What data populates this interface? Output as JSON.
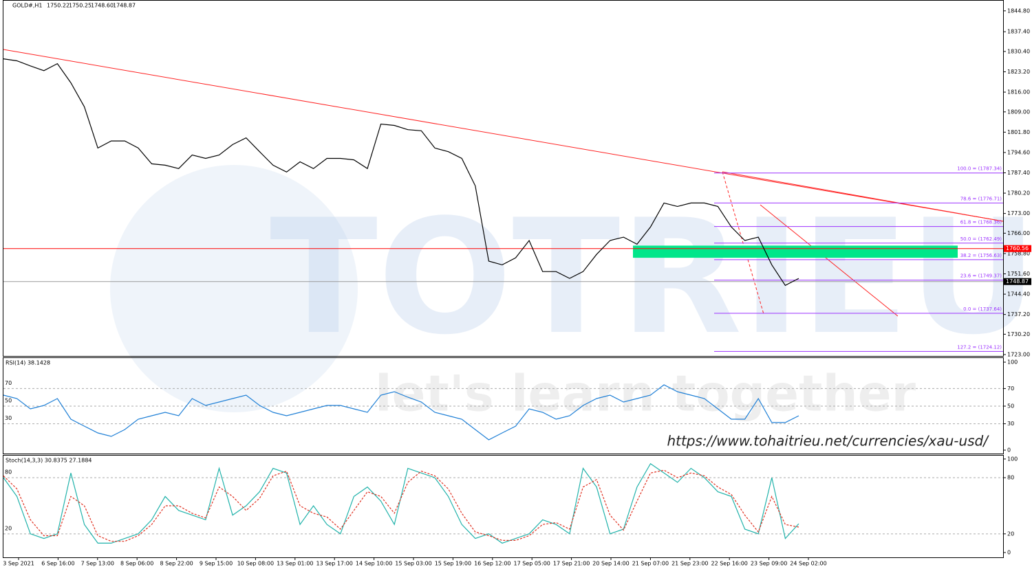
{
  "chart_data": [
    {
      "type": "line",
      "symbol": "GOLD#,H1",
      "quote": [
        "1750.22",
        "1750.25",
        "1748.60",
        "1748.87"
      ],
      "ylim": [
        1722.5,
        1848.4
      ],
      "yticks": [
        {
          "value": 1844.8,
          "label": "1844.80"
        },
        {
          "value": 1837.4,
          "label": "1837.40"
        },
        {
          "value": 1830.4,
          "label": "1830.40"
        },
        {
          "value": 1823.2,
          "label": "1823.20"
        },
        {
          "value": 1816.0,
          "label": "1816.00"
        },
        {
          "value": 1809.0,
          "label": "1809.00"
        },
        {
          "value": 1801.8,
          "label": "1801.80"
        },
        {
          "value": 1794.6,
          "label": "1794.60"
        },
        {
          "value": 1787.4,
          "label": "1787.40"
        },
        {
          "value": 1780.2,
          "label": "1780.20"
        },
        {
          "value": 1773.0,
          "label": "1773.00"
        },
        {
          "value": 1766.0,
          "label": "1766.00"
        },
        {
          "value": 1758.8,
          "label": "1758.80"
        },
        {
          "value": 1751.6,
          "label": "1751.60"
        },
        {
          "value": 1744.4,
          "label": "1744.40"
        },
        {
          "value": 1737.2,
          "label": "1737.20"
        },
        {
          "value": 1730.2,
          "label": "1730.20"
        },
        {
          "value": 1723.0,
          "label": "1723.00"
        }
      ],
      "series": [
        {
          "color": "#000000",
          "values": [
            1827.8,
            1827.1,
            1825.3,
            1823.6,
            1826.1,
            1819.3,
            1810.8,
            1796.2,
            1798.7,
            1798.7,
            1796.2,
            1790.6,
            1790.1,
            1788.9,
            1793.7,
            1792.5,
            1793.7,
            1797.4,
            1799.8,
            1794.9,
            1790.1,
            1787.7,
            1791.3,
            1788.9,
            1792.5,
            1792.5,
            1792.0,
            1788.9,
            1804.7,
            1804.2,
            1802.7,
            1802.3,
            1796.2,
            1794.9,
            1792.5,
            1782.8,
            1756.1,
            1754.8,
            1757.3,
            1763.4,
            1752.4,
            1752.4,
            1750.0,
            1752.4,
            1758.5,
            1763.4,
            1764.6,
            1762.1,
            1768.2,
            1776.7,
            1775.5,
            1776.7,
            1776.7,
            1775.5,
            1768.2,
            1763.4,
            1764.6,
            1754.8,
            1747.5,
            1750.0
          ]
        }
      ],
      "horizontal_line": {
        "value": 1760.56,
        "color": "#ff0000"
      },
      "last_price": 1748.87,
      "zone": {
        "low": 1757.3,
        "high": 1761.6,
        "color": "#00e68a"
      },
      "fib_color": "#9b30ff",
      "fib_levels": [
        {
          "label": "100.0 = (1787.34)",
          "value": 1787.34
        },
        {
          "label": "78.6 = (1776.71)",
          "value": 1776.71
        },
        {
          "label": "61.8 = (1768.36)",
          "value": 1768.36
        },
        {
          "label": "50.0 = (1762.49)",
          "value": 1762.49
        },
        {
          "label": "38.2 = (1756.63)",
          "value": 1756.63
        },
        {
          "label": "23.6 = (1749.37)",
          "value": 1749.37
        },
        {
          "label": "0.0 = (1737.64)",
          "value": 1737.64
        },
        {
          "label": "127.2 = (1724.12)",
          "value": 1724.12
        }
      ],
      "x_labels": [
        "3 Sep 2021",
        "6 Sep 16:00",
        "7 Sep 13:00",
        "8 Sep 06:00",
        "8 Sep 22:00",
        "9 Sep 15:00",
        "10 Sep 08:00",
        "13 Sep 01:00",
        "13 Sep 17:00",
        "14 Sep 10:00",
        "15 Sep 03:00",
        "15 Sep 19:00",
        "16 Sep 12:00",
        "17 Sep 05:00",
        "17 Sep 21:00",
        "20 Sep 14:00",
        "21 Sep 07:00",
        "21 Sep 23:00",
        "22 Sep 16:00",
        "23 Sep 09:00",
        "24 Sep 02:00"
      ],
      "watermark": "TOTRIEU",
      "tagline": "let's learn together",
      "url": "https://www.tohaitrieu.net/currencies/xau-usd/"
    },
    {
      "type": "line",
      "title": "RSI(14) 38.1428",
      "ylim": [
        -3.9,
        104.7
      ],
      "yticks": [
        100,
        70,
        50,
        30,
        0
      ],
      "levels": [
        70,
        50,
        30
      ],
      "series": [
        {
          "color": "#1e7fd6",
          "values": [
            62.5,
            58.6,
            46.9,
            50.8,
            58.6,
            35.2,
            27.3,
            19.5,
            15.6,
            23.4,
            35.2,
            39.1,
            43.0,
            39.1,
            58.6,
            50.8,
            54.7,
            58.6,
            62.5,
            50.8,
            43.0,
            39.1,
            43.0,
            46.9,
            50.8,
            50.8,
            46.9,
            43.0,
            62.5,
            66.4,
            60.2,
            54.7,
            43.0,
            39.1,
            35.2,
            23.4,
            11.7,
            19.5,
            27.3,
            46.9,
            43.0,
            35.2,
            39.1,
            50.8,
            58.6,
            62.5,
            54.7,
            58.6,
            62.5,
            74.2,
            66.4,
            62.5,
            58.6,
            46.9,
            35.2,
            35.2,
            58.6,
            31.3,
            31.3,
            39.1
          ]
        }
      ]
    },
    {
      "type": "line",
      "title": "Stoch(14,3,3) 30.8375 27.1884",
      "ylim": [
        -5.1,
        103.6
      ],
      "yticks": [
        100,
        80,
        20,
        0
      ],
      "levels": [
        80,
        20
      ],
      "series": [
        {
          "color": "#20b2aa",
          "values": [
            80,
            60,
            20,
            15,
            20,
            85,
            30,
            10,
            10,
            15,
            20,
            35,
            60,
            45,
            40,
            35,
            90,
            40,
            50,
            65,
            90,
            85,
            30,
            50,
            30,
            20,
            60,
            70,
            55,
            30,
            90,
            85,
            80,
            60,
            30,
            15,
            20,
            10,
            15,
            20,
            35,
            30,
            20,
            90,
            70,
            20,
            25,
            70,
            95,
            85,
            75,
            90,
            80,
            65,
            60,
            25,
            20,
            80,
            15,
            30.8
          ]
        },
        {
          "color": "#e03020",
          "dash": true,
          "values": [
            82,
            68,
            35,
            18,
            18,
            60,
            50,
            18,
            12,
            12,
            18,
            30,
            50,
            50,
            42,
            37,
            70,
            60,
            45,
            58,
            82,
            87,
            50,
            42,
            38,
            25,
            45,
            65,
            60,
            42,
            75,
            87,
            82,
            68,
            42,
            22,
            18,
            13,
            13,
            18,
            30,
            32,
            25,
            70,
            78,
            40,
            24,
            55,
            85,
            88,
            80,
            85,
            82,
            70,
            62,
            40,
            22,
            60,
            30,
            27.2
          ]
        }
      ]
    }
  ]
}
